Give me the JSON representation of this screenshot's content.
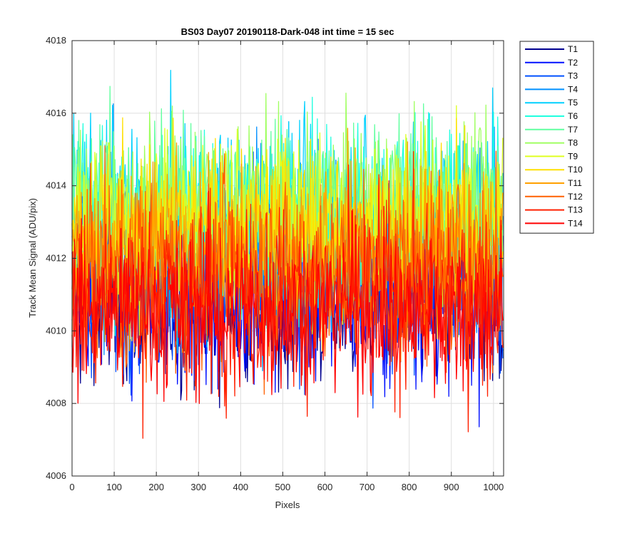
{
  "chart_data": {
    "type": "line",
    "title": "BS03 Day07 20190118-Dark-048 int time = 15 sec",
    "xlabel": "Pixels",
    "ylabel": "Track Mean Signal (ADU/pix)",
    "xlim": [
      0,
      1024
    ],
    "ylim": [
      4006,
      4018
    ],
    "xticks": [
      0,
      100,
      200,
      300,
      400,
      500,
      600,
      700,
      800,
      900,
      1000
    ],
    "yticks": [
      4006,
      4008,
      4010,
      4012,
      4014,
      4016,
      4018
    ],
    "grid": true,
    "legend_position": "outside-right",
    "n_points": 1024,
    "series": [
      {
        "name": "T1",
        "color": "#00008f",
        "mean": 4010.7,
        "noise": 1.1
      },
      {
        "name": "T2",
        "color": "#0010ff",
        "mean": 4011.0,
        "noise": 1.15
      },
      {
        "name": "T3",
        "color": "#0050ff",
        "mean": 4011.5,
        "noise": 1.2
      },
      {
        "name": "T4",
        "color": "#0090ff",
        "mean": 4012.3,
        "noise": 1.3
      },
      {
        "name": "T5",
        "color": "#00d0ff",
        "mean": 4013.0,
        "noise": 1.3
      },
      {
        "name": "T6",
        "color": "#20ffdf",
        "mean": 4013.3,
        "noise": 1.25
      },
      {
        "name": "T7",
        "color": "#60ff9f",
        "mean": 4013.3,
        "noise": 1.25
      },
      {
        "name": "T8",
        "color": "#9fff60",
        "mean": 4013.2,
        "noise": 1.25
      },
      {
        "name": "T9",
        "color": "#dfff20",
        "mean": 4013.0,
        "noise": 1.25
      },
      {
        "name": "T10",
        "color": "#ffe000",
        "mean": 4012.7,
        "noise": 1.25
      },
      {
        "name": "T11",
        "color": "#ffa000",
        "mean": 4012.2,
        "noise": 1.25
      },
      {
        "name": "T12",
        "color": "#ff6000",
        "mean": 4011.7,
        "noise": 1.25
      },
      {
        "name": "T13",
        "color": "#ff2000",
        "mean": 4011.0,
        "noise": 1.25
      },
      {
        "name": "T14",
        "color": "#ff0000",
        "mean": 4010.5,
        "noise": 1.1
      }
    ]
  }
}
